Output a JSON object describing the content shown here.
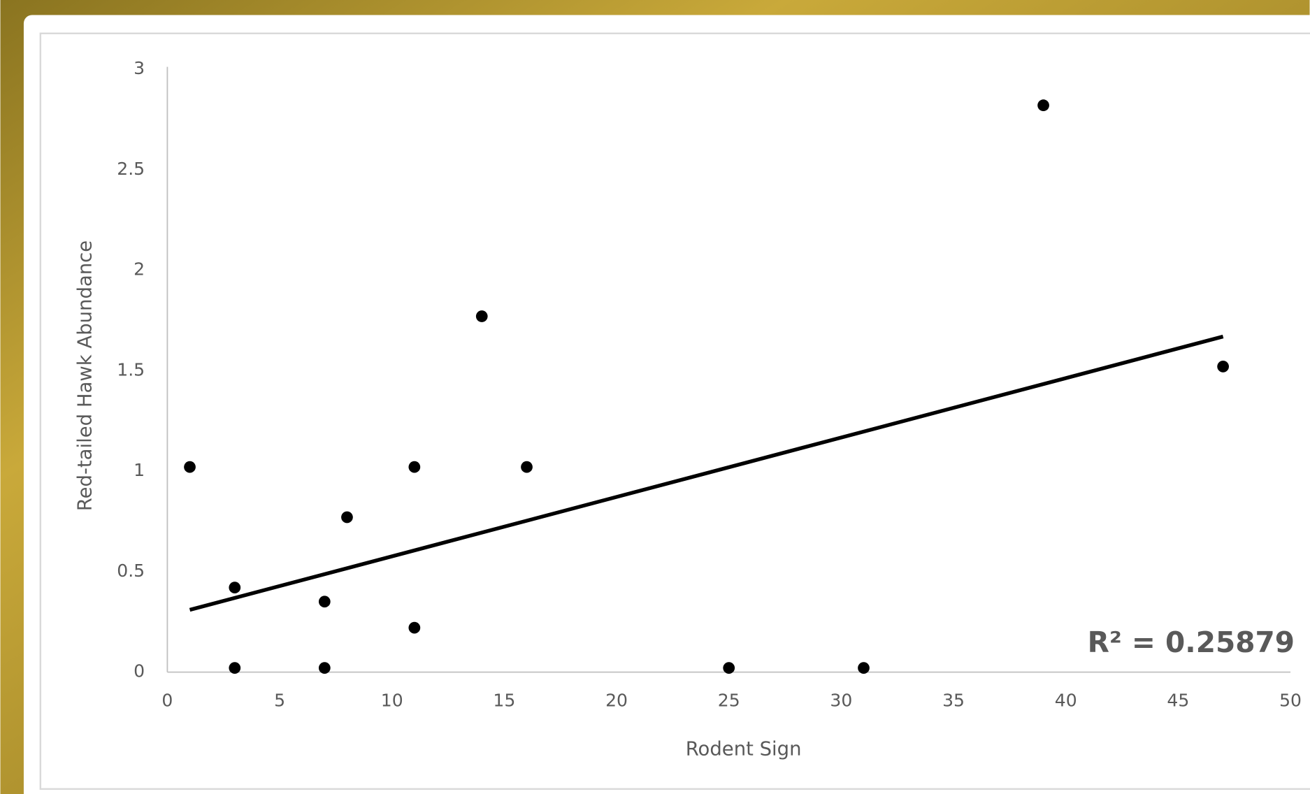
{
  "chart_data": {
    "type": "scatter",
    "xlabel": "Rodent Sign",
    "ylabel": "Red-tailed Hawk Abundance",
    "x": [
      1,
      3,
      3,
      7,
      7,
      8,
      11,
      11,
      14,
      16,
      25,
      31,
      39,
      47
    ],
    "y": [
      1,
      0.4,
      0,
      0.33,
      0,
      0.75,
      1,
      0.2,
      1.75,
      1,
      0,
      0,
      2.8,
      1.5
    ],
    "color": "#000000",
    "trendline": {
      "x": [
        1,
        47
      ],
      "y": [
        0.31,
        1.67
      ],
      "color": "#000000"
    },
    "annotation": "R² = 0.25879",
    "xlim": [
      0,
      50
    ],
    "xticks": [
      0,
      5,
      10,
      15,
      20,
      25,
      30,
      35,
      40,
      45,
      50
    ],
    "ylim": [
      0,
      3
    ],
    "yticks": [
      0,
      0.5,
      1,
      1.5,
      2,
      2.5,
      3
    ]
  }
}
